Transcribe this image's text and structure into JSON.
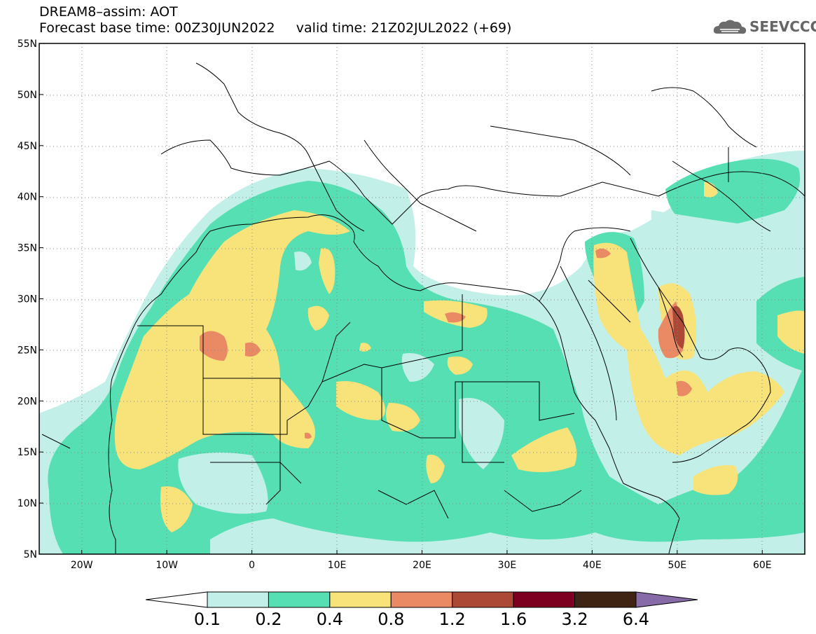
{
  "header": {
    "title_line1": "DREAM8–assim: AOT",
    "title_line2": "Forecast base time: 00Z30JUN2022     valid time: 21Z02JUL2022 (+69)",
    "logo_text": "SEEVCCC"
  },
  "map": {
    "lon_range": [
      -25,
      65
    ],
    "lat_range": [
      5,
      55
    ],
    "lat_ticks": [
      {
        "value": 55,
        "label": "55N"
      },
      {
        "value": 50,
        "label": "50N"
      },
      {
        "value": 45,
        "label": "45N"
      },
      {
        "value": 40,
        "label": "40N"
      },
      {
        "value": 35,
        "label": "35N"
      },
      {
        "value": 30,
        "label": "30N"
      },
      {
        "value": 25,
        "label": "25N"
      },
      {
        "value": 20,
        "label": "20N"
      },
      {
        "value": 15,
        "label": "15N"
      },
      {
        "value": 10,
        "label": "10N"
      },
      {
        "value": 5,
        "label": "5N"
      }
    ],
    "lon_ticks": [
      {
        "value": -20,
        "label": "20W"
      },
      {
        "value": -10,
        "label": "10W"
      },
      {
        "value": 0,
        "label": "0"
      },
      {
        "value": 10,
        "label": "10E"
      },
      {
        "value": 20,
        "label": "20E"
      },
      {
        "value": 30,
        "label": "30E"
      },
      {
        "value": 40,
        "label": "40E"
      },
      {
        "value": 50,
        "label": "50E"
      },
      {
        "value": 60,
        "label": "60E"
      }
    ],
    "grid": "dotted"
  },
  "colorbar": {
    "labels": [
      "0.1",
      "0.2",
      "0.4",
      "0.8",
      "1.2",
      "1.6",
      "3.2",
      "6.4"
    ],
    "colors": [
      "#ffffff",
      "#c2f0e8",
      "#55dfb2",
      "#f7e37a",
      "#e98a65",
      "#ab4936",
      "#7d0021",
      "#3f2414",
      "#876aa8"
    ]
  }
}
